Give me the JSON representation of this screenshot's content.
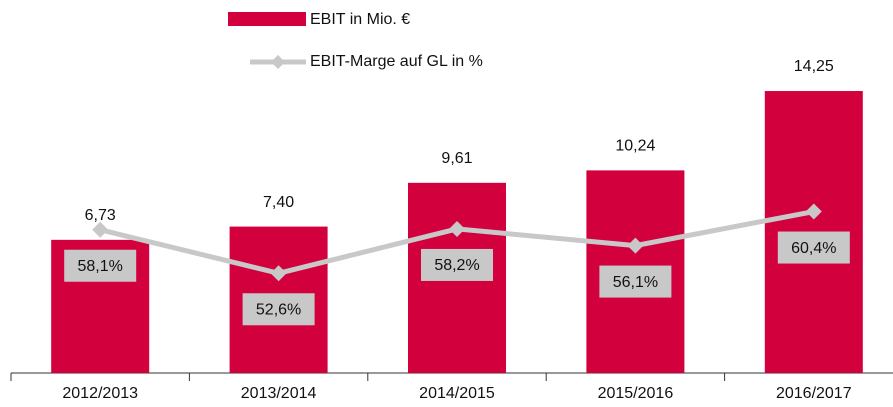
{
  "chart_data": {
    "type": "bar_line",
    "categories": [
      "2012/2013",
      "2013/2014",
      "2014/2015",
      "2015/2016",
      "2016/2017"
    ],
    "series": [
      {
        "name": "EBIT in Mio. €",
        "type": "bar",
        "color": "#d2003c",
        "values": [
          6.73,
          7.4,
          9.61,
          10.24,
          14.25
        ],
        "value_labels": [
          "6,73",
          "7,40",
          "9,61",
          "10,24",
          "14,25"
        ]
      },
      {
        "name": "EBIT-Marge auf GL in %",
        "type": "line",
        "axis": "y2",
        "color": "#c8c8c8",
        "values": [
          58.1,
          52.6,
          58.2,
          56.1,
          60.4
        ],
        "value_labels": [
          "58,1%",
          "52,6%",
          "58,2%",
          "56,1%",
          "60,4%"
        ]
      }
    ],
    "ylim": [
      0,
      16
    ],
    "y2lim": [
      40,
      80
    ]
  }
}
